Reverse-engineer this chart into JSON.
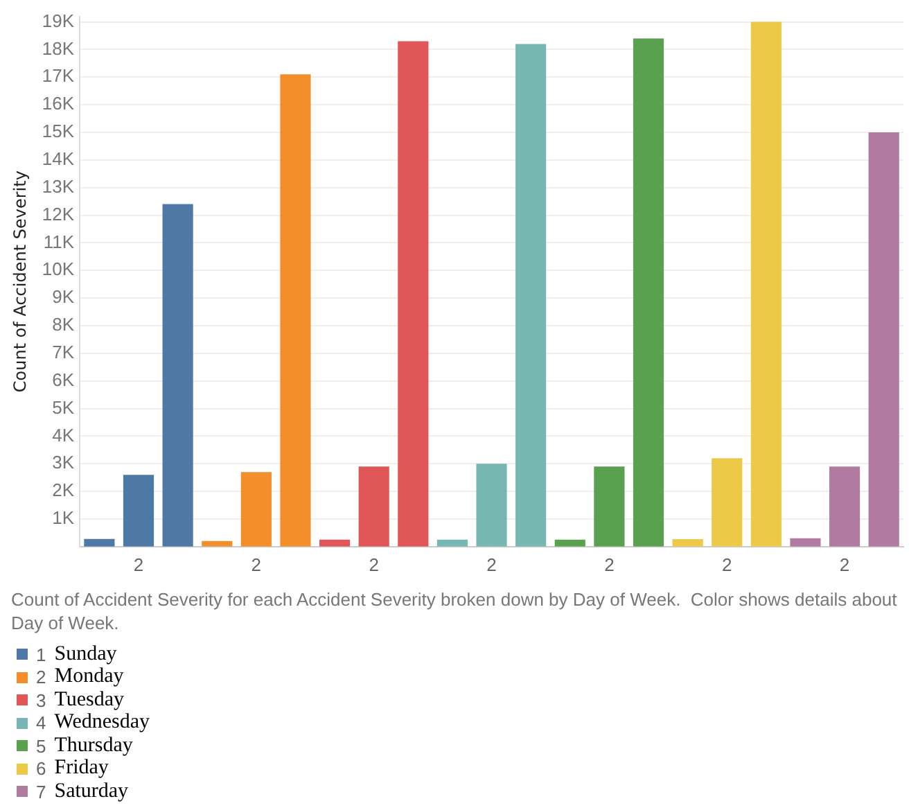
{
  "chart_data": {
    "type": "bar",
    "ylabel": "Count of Accident Severity",
    "categories": [
      null,
      "2",
      null,
      null,
      "2",
      null,
      null,
      "2",
      null,
      null,
      "2",
      null,
      null,
      "2",
      null,
      null,
      "2",
      null,
      null,
      "2",
      null
    ],
    "series": [
      {
        "name": "1 Sunday",
        "color": "#4e79a7",
        "values": [
          280,
          2600,
          12400,
          null,
          null,
          null,
          null,
          null,
          null,
          null,
          null,
          null,
          null,
          null,
          null,
          null,
          null,
          null,
          null,
          null,
          null
        ]
      },
      {
        "name": "2 Monday",
        "color": "#f28e2b",
        "values": [
          null,
          null,
          null,
          200,
          2700,
          17100,
          null,
          null,
          null,
          null,
          null,
          null,
          null,
          null,
          null,
          null,
          null,
          null,
          null,
          null,
          null
        ]
      },
      {
        "name": "3 Tuesday",
        "color": "#e15759",
        "values": [
          null,
          null,
          null,
          null,
          null,
          null,
          250,
          2900,
          18300,
          null,
          null,
          null,
          null,
          null,
          null,
          null,
          null,
          null,
          null,
          null,
          null
        ]
      },
      {
        "name": "4 Wednesday",
        "color": "#76b7b2",
        "values": [
          null,
          null,
          null,
          null,
          null,
          null,
          null,
          null,
          null,
          250,
          3000,
          18200,
          null,
          null,
          null,
          null,
          null,
          null,
          null,
          null,
          null
        ]
      },
      {
        "name": "5 Thursday",
        "color": "#59a14f",
        "values": [
          null,
          null,
          null,
          null,
          null,
          null,
          null,
          null,
          null,
          null,
          null,
          null,
          250,
          2900,
          18400,
          null,
          null,
          null,
          null,
          null,
          null
        ]
      },
      {
        "name": "6 Friday",
        "color": "#edc948",
        "values": [
          null,
          null,
          null,
          null,
          null,
          null,
          null,
          null,
          null,
          null,
          null,
          null,
          null,
          null,
          null,
          270,
          3200,
          19000,
          null,
          null,
          null
        ]
      },
      {
        "name": "7 Saturday",
        "color": "#b07aa1",
        "values": [
          null,
          null,
          null,
          null,
          null,
          null,
          null,
          null,
          null,
          null,
          null,
          null,
          null,
          null,
          null,
          null,
          null,
          null,
          300,
          2900,
          15000
        ]
      }
    ],
    "ylim": [
      0,
      19200
    ],
    "yticks": [
      {
        "value": 1000,
        "label": "1K"
      },
      {
        "value": 2000,
        "label": "2K"
      },
      {
        "value": 3000,
        "label": "3K"
      },
      {
        "value": 4000,
        "label": "4K"
      },
      {
        "value": 5000,
        "label": "5K"
      },
      {
        "value": 6000,
        "label": "6K"
      },
      {
        "value": 7000,
        "label": "7K"
      },
      {
        "value": 8000,
        "label": "8K"
      },
      {
        "value": 9000,
        "label": "9K"
      },
      {
        "value": 10000,
        "label": "10K"
      },
      {
        "value": 11000,
        "label": "11K"
      },
      {
        "value": 12000,
        "label": "12K"
      },
      {
        "value": 13000,
        "label": "13K"
      },
      {
        "value": 14000,
        "label": "14K"
      },
      {
        "value": 15000,
        "label": "15K"
      },
      {
        "value": 16000,
        "label": "16K"
      },
      {
        "value": 17000,
        "label": "17K"
      },
      {
        "value": 18000,
        "label": "18K"
      },
      {
        "value": 19000,
        "label": "19K"
      }
    ],
    "grid": "y",
    "legend": "bottom",
    "annotations": [
      "Count of Accident Severity for each Accident Severity broken down by Day of Week.  Color shows details about Day of Week."
    ]
  }
}
